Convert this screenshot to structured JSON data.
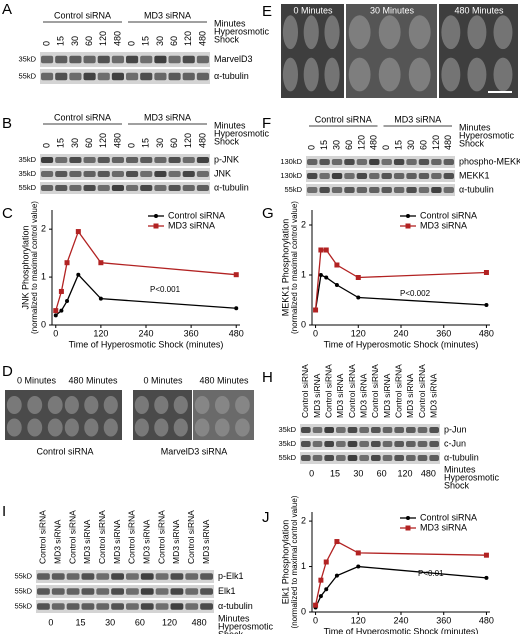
{
  "panel_labels": [
    "A",
    "B",
    "C",
    "D",
    "E",
    "F",
    "G",
    "H",
    "I",
    "J"
  ],
  "blots": {
    "A": {
      "groups": [
        "Control siRNA",
        "MD3 siRNA"
      ],
      "lanes": [
        "0",
        "15",
        "30",
        "60",
        "120",
        "480",
        "0",
        "15",
        "30",
        "60",
        "120",
        "480"
      ],
      "side_labels": [
        "Minutes",
        "Hyperosmotic",
        "Shock"
      ],
      "bands": [
        "MarvelD3",
        "α-tubulin"
      ],
      "markers": [
        "35kD",
        "55kD"
      ]
    },
    "B": {
      "groups": [
        "Control siRNA",
        "MD3 siRNA"
      ],
      "lanes": [
        "0",
        "15",
        "30",
        "60",
        "120",
        "480",
        "0",
        "15",
        "30",
        "60",
        "120",
        "480"
      ],
      "side_labels": [
        "Minutes",
        "Hyperosmotic",
        "Shock"
      ],
      "bands": [
        "p-JNK",
        "JNK",
        "α-tubulin"
      ],
      "markers": [
        "35kD",
        "35kD",
        "55kD"
      ]
    },
    "F": {
      "groups": [
        "Control siRNA",
        "MD3 siRNA"
      ],
      "lanes": [
        "0",
        "15",
        "30",
        "60",
        "120",
        "480",
        "0",
        "15",
        "30",
        "60",
        "120",
        "480"
      ],
      "side_labels": [
        "Minutes",
        "Hyperosmotic",
        "Shock"
      ],
      "bands": [
        "phospho-MEKK1",
        "MEKK1",
        "α-tubulin"
      ],
      "markers": [
        "130kD",
        "130kD",
        "55kD"
      ]
    },
    "H": {
      "lanes": [
        "Control siRNA",
        "MD3 siRNA",
        "Control siRNA",
        "MD3 siRNA",
        "Control siRNA",
        "MD3 siRNA",
        "Control siRNA",
        "MD3 siRNA",
        "Control siRNA",
        "MD3 siRNA",
        "Control siRNA",
        "MD3 siRNA"
      ],
      "bands": [
        "p-Jun",
        "c-Jun",
        "α-tubulin"
      ],
      "markers": [
        "35kD",
        "35kD",
        "55kD"
      ],
      "times": [
        "0",
        "15",
        "30",
        "60",
        "120",
        "480"
      ],
      "side_labels": [
        "Minutes",
        "Hyperosmotic",
        "Shock"
      ]
    },
    "I": {
      "lanes": [
        "Control siRNA",
        "MD3 siRNA",
        "Control siRNA",
        "MD3 siRNA",
        "Control siRNA",
        "MD3 siRNA",
        "Control siRNA",
        "MD3 siRNA",
        "Control siRNA",
        "MD3 siRNA",
        "Control siRNA",
        "MD3 siRNA"
      ],
      "bands": [
        "p-Elk1",
        "Elk1",
        "α-tubulin"
      ],
      "markers": [
        "55kD",
        "55kD",
        "55kD"
      ],
      "times": [
        "0",
        "15",
        "30",
        "60",
        "120",
        "480"
      ],
      "side_labels": [
        "Minutes",
        "Hyperosmotic",
        "Shock"
      ]
    }
  },
  "images": {
    "D": {
      "labels": [
        "0 Minutes",
        "480 Minutes",
        "0 Minutes",
        "480 Minutes"
      ],
      "captions": [
        "Control siRNA",
        "MarvelD3 siRNA"
      ]
    },
    "E": {
      "labels": [
        "0 Minutes",
        "30 Minutes",
        "480 Minutes"
      ]
    }
  },
  "chart_data": [
    {
      "type": "line",
      "ylabel": [
        "JNK Phosphorylation",
        "(normalized to maximal control value)"
      ],
      "xlabel": "Time of Hyperosmotic Shock (minutes)",
      "x": [
        0,
        15,
        30,
        60,
        120,
        480
      ],
      "xlim": [
        -10,
        490
      ],
      "xticks": [
        0,
        120,
        240,
        360,
        480
      ],
      "ylim": [
        0,
        2.4
      ],
      "yticks": [
        0,
        1,
        2
      ],
      "annotation": "P<0.001",
      "series": [
        {
          "name": "Control siRNA",
          "color": "#000000",
          "marker": "circle",
          "values": [
            0.2,
            0.3,
            0.5,
            1.05,
            0.55,
            0.35
          ]
        },
        {
          "name": "MD3 siRNA",
          "color": "#b22222",
          "marker": "square",
          "values": [
            0.3,
            0.7,
            1.3,
            1.95,
            1.3,
            1.05
          ]
        }
      ]
    },
    {
      "type": "line",
      "ylabel": [
        "MEKK1 Phosphorylation",
        "(normalized to maximal control value)"
      ],
      "xlabel": "Time of Hyperosmotic Shock (minutes)",
      "x": [
        0,
        15,
        30,
        60,
        120,
        480
      ],
      "xlim": [
        -10,
        490
      ],
      "xticks": [
        0,
        120,
        240,
        360,
        480
      ],
      "ylim": [
        0,
        2.3
      ],
      "yticks": [
        0,
        1,
        2
      ],
      "annotation": "P<0.002",
      "series": [
        {
          "name": "Control siRNA",
          "color": "#000000",
          "marker": "circle",
          "values": [
            0.3,
            1.0,
            0.95,
            0.8,
            0.55,
            0.4
          ]
        },
        {
          "name": "MD3 siRNA",
          "color": "#b22222",
          "marker": "square",
          "values": [
            0.3,
            1.5,
            1.5,
            1.2,
            0.95,
            1.05
          ]
        }
      ]
    },
    {
      "type": "line",
      "ylabel": [
        "Elk1 Phosphorylation",
        "(normalized to maximal control value)"
      ],
      "xlabel": "Time of Hyperosmotic Shock (minutes)",
      "x": [
        0,
        15,
        30,
        60,
        120,
        480
      ],
      "xlim": [
        -10,
        490
      ],
      "xticks": [
        0,
        120,
        240,
        360,
        480
      ],
      "ylim": [
        0,
        2.2
      ],
      "yticks": [
        0,
        1,
        2
      ],
      "annotation": "P<0.01",
      "series": [
        {
          "name": "Control siRNA",
          "color": "#000000",
          "marker": "circle",
          "values": [
            0.1,
            0.35,
            0.5,
            0.8,
            1.0,
            0.75
          ]
        },
        {
          "name": "MD3 siRNA",
          "color": "#b22222",
          "marker": "square",
          "values": [
            0.15,
            0.7,
            1.1,
            1.55,
            1.3,
            1.25
          ]
        }
      ]
    }
  ]
}
